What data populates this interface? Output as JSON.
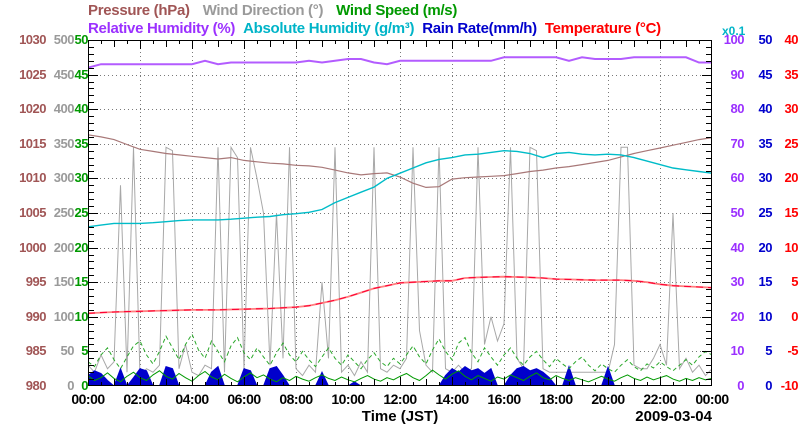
{
  "legend": {
    "row1": [
      {
        "label": "Pressure (hPa)",
        "color": "#a05555"
      },
      {
        "label": "Wind Direction (°)",
        "color": "#9a9a9a"
      },
      {
        "label": "Wind Speed (m/s)",
        "color": "#009900"
      }
    ],
    "row2": [
      {
        "label": "Relative Humidity (%)",
        "color": "#9b30ff"
      },
      {
        "label": "Absolute Humidity (g/m³)",
        "color": "#00b4c8"
      },
      {
        "label": "Rain Rate(mm/h)",
        "color": "#0000cc"
      },
      {
        "label": "Temperature (°C)",
        "color": "#ff0000"
      }
    ],
    "scale_note": {
      "label": "x0.1",
      "color": "#00b4c8"
    }
  },
  "y_axes_left": [
    {
      "id": "pressure",
      "unit": "hPa",
      "color": "#a05555",
      "ticks": [
        "1030",
        "1025",
        "1020",
        "1015",
        "1010",
        "1005",
        "1000",
        "995",
        "990",
        "985",
        "980"
      ]
    },
    {
      "id": "wind-direction",
      "unit": "deg",
      "color": "#9a9a9a",
      "ticks": [
        "500",
        "450",
        "400",
        "350",
        "300",
        "250",
        "200",
        "150",
        "100",
        "50",
        "0"
      ]
    },
    {
      "id": "wind-speed",
      "unit": "m/s",
      "color": "#009900",
      "ticks": [
        "50",
        "45",
        "40",
        "35",
        "30",
        "25",
        "20",
        "15",
        "10",
        "5",
        "0"
      ]
    }
  ],
  "y_axes_right": [
    {
      "id": "relative-humidity",
      "unit": "%",
      "color": "#9b30ff",
      "ticks": [
        "100",
        "90",
        "80",
        "70",
        "60",
        "50",
        "40",
        "30",
        "20",
        "10",
        "0"
      ]
    },
    {
      "id": "rain-rate",
      "unit": "mm/h",
      "color": "#0000cc",
      "ticks": [
        "50",
        "45",
        "40",
        "35",
        "30",
        "25",
        "20",
        "15",
        "10",
        "5",
        "0"
      ]
    },
    {
      "id": "temperature",
      "unit": "°C",
      "color": "#ff0000",
      "ticks": [
        "40",
        "35",
        "30",
        "25",
        "20",
        "15",
        "10",
        "5",
        "0",
        "-5",
        "-10"
      ]
    }
  ],
  "x_axis": {
    "labels": [
      "00:00",
      "02:00",
      "04:00",
      "06:00",
      "08:00",
      "10:00",
      "12:00",
      "14:00",
      "16:00",
      "18:00",
      "20:00",
      "22:00",
      "00:00"
    ],
    "title": "Time (JST)",
    "date": "2009-03-04"
  },
  "chart_data": {
    "type": "line",
    "xlabel": "Time (JST)",
    "date": "2009-03-04",
    "grid": true,
    "x_hours_smooth": [
      0,
      0.5,
      1,
      1.5,
      2,
      2.5,
      3,
      3.5,
      4,
      4.5,
      5,
      5.5,
      6,
      6.5,
      7,
      7.5,
      8,
      8.5,
      9,
      9.5,
      10,
      10.5,
      11,
      11.5,
      12,
      12.5,
      13,
      13.5,
      14,
      14.5,
      15,
      15.5,
      16,
      16.5,
      17,
      17.5,
      18,
      18.5,
      19,
      19.5,
      20,
      20.5,
      21,
      21.5,
      22,
      22.5,
      23,
      23.5,
      24
    ],
    "x_hours_fine": [
      0,
      0.25,
      0.5,
      0.75,
      1,
      1.25,
      1.5,
      1.75,
      2,
      2.25,
      2.5,
      2.75,
      3,
      3.25,
      3.5,
      3.75,
      4,
      4.25,
      4.5,
      4.75,
      5,
      5.25,
      5.5,
      5.75,
      6,
      6.25,
      6.5,
      6.75,
      7,
      7.25,
      7.5,
      7.75,
      8,
      8.25,
      8.5,
      8.75,
      9,
      9.25,
      9.5,
      9.75,
      10,
      10.25,
      10.5,
      10.75,
      11,
      11.25,
      11.5,
      11.75,
      12,
      12.25,
      12.5,
      12.75,
      13,
      13.25,
      13.5,
      13.75,
      14,
      14.25,
      14.5,
      14.75,
      15,
      15.25,
      15.5,
      15.75,
      16,
      16.25,
      16.5,
      16.75,
      17,
      17.25,
      17.5,
      17.75,
      18,
      18.25,
      18.5,
      18.75,
      19,
      19.25,
      19.5,
      19.75,
      20,
      20.25,
      20.5,
      20.75,
      21,
      21.25,
      21.5,
      21.75,
      22,
      22.25,
      22.5,
      22.75,
      23,
      23.25,
      23.5,
      23.75,
      24
    ],
    "series": [
      {
        "name": "wind_direction",
        "unit": "deg",
        "x": "fine",
        "range": [
          0,
          500
        ],
        "color": "#a8a8a8",
        "width": 1,
        "values": [
          30,
          20,
          45,
          25,
          35,
          290,
          20,
          345,
          15,
          25,
          20,
          30,
          345,
          340,
          25,
          60,
          20,
          15,
          30,
          25,
          345,
          20,
          345,
          330,
          25,
          345,
          300,
          250,
          30,
          250,
          40,
          345,
          25,
          15,
          30,
          20,
          150,
          40,
          345,
          20,
          30,
          15,
          35,
          20,
          345,
          25,
          20,
          30,
          25,
          40,
          345,
          80,
          30,
          20,
          345,
          25,
          20,
          30,
          20,
          25,
          345,
          60,
          100,
          65,
          90,
          345,
          40,
          25,
          345,
          340,
          25,
          20,
          20,
          20,
          20,
          20,
          20,
          20,
          20,
          20,
          20,
          60,
          345,
          345,
          30,
          25,
          25,
          40,
          60,
          30,
          250,
          25,
          40,
          20,
          30,
          15,
          25
        ]
      },
      {
        "name": "rain_rate",
        "unit": "mm/h",
        "x": "fine",
        "range": [
          0,
          50
        ],
        "color": "#0000cc",
        "fill": true,
        "values": [
          1.5,
          2.2,
          1.8,
          0.8,
          0,
          2.5,
          0,
          1.2,
          2.5,
          2.2,
          0,
          0,
          2.8,
          2.5,
          0,
          0,
          0,
          0,
          0,
          2.0,
          2.8,
          0,
          0,
          0,
          2.5,
          2.2,
          0,
          0,
          2.5,
          2.8,
          1.5,
          0,
          0,
          0,
          0,
          0,
          2.0,
          0,
          0,
          0,
          0,
          0.6,
          0,
          0,
          0,
          0,
          0,
          0,
          0,
          0,
          0,
          0,
          0,
          0,
          0,
          1.5,
          2.5,
          2.0,
          2.8,
          2.2,
          2.5,
          1.8,
          2.5,
          0,
          0,
          1.5,
          2.5,
          2.8,
          2.2,
          2.5,
          2.0,
          1.2,
          0,
          0,
          2.8,
          0,
          0,
          0,
          0,
          0,
          2.7,
          0,
          0,
          0,
          0,
          0,
          0,
          0,
          0,
          0,
          0,
          0,
          0,
          0,
          0,
          0,
          0
        ]
      },
      {
        "name": "wind_speed_max",
        "unit": "m/s",
        "x": "fine",
        "range": [
          0,
          50
        ],
        "color": "#2aa82a",
        "width": 1,
        "dash": "4 3",
        "values": [
          3.5,
          2.8,
          4.5,
          5.5,
          3.8,
          2.5,
          4.2,
          5.8,
          6.5,
          4.5,
          3.2,
          5.0,
          7.2,
          5.5,
          3.8,
          6.0,
          7.5,
          5.2,
          4.0,
          6.5,
          5.0,
          3.5,
          5.8,
          7.0,
          4.8,
          3.8,
          5.5,
          4.2,
          3.0,
          4.8,
          6.2,
          4.5,
          3.5,
          5.0,
          3.8,
          2.8,
          4.2,
          5.5,
          4.0,
          3.0,
          4.5,
          3.5,
          2.5,
          3.8,
          4.8,
          3.5,
          2.8,
          4.0,
          3.2,
          4.5,
          5.8,
          4.2,
          3.2,
          5.2,
          6.8,
          5.0,
          3.8,
          6.2,
          7.0,
          4.8,
          3.5,
          5.5,
          4.2,
          3.0,
          4.5,
          5.5,
          4.0,
          3.0,
          4.2,
          5.0,
          3.8,
          2.8,
          4.0,
          3.2,
          2.5,
          3.5,
          4.2,
          3.0,
          2.2,
          3.2,
          2.5,
          2.0,
          3.0,
          3.8,
          2.8,
          2.2,
          3.2,
          2.6,
          3.5,
          2.8,
          2.2,
          3.0,
          3.8,
          3.0,
          4.2,
          5.0,
          4.5
        ]
      },
      {
        "name": "wind_speed",
        "unit": "m/s",
        "x": "fine",
        "range": [
          0,
          50
        ],
        "color": "#009900",
        "width": 1,
        "values": [
          1.5,
          0.8,
          1.2,
          1.9,
          1.1,
          0.6,
          1.4,
          2.0,
          1.2,
          0.8,
          1.6,
          2.2,
          1.4,
          1.0,
          1.8,
          1.2,
          0.7,
          1.5,
          2.1,
          1.3,
          0.9,
          1.7,
          1.1,
          0.6,
          1.3,
          1.9,
          1.2,
          1.6,
          1.0,
          0.6,
          1.2,
          0.8,
          1.4,
          1.0,
          0.7,
          1.2,
          1.6,
          1.1,
          0.8,
          1.3,
          0.9,
          0.6,
          1.1,
          1.5,
          1.0,
          0.7,
          1.2,
          0.9,
          1.4,
          1.8,
          1.2,
          0.8,
          1.5,
          2.3,
          1.6,
          1.0,
          1.7,
          2.2,
          1.4,
          0.9,
          1.5,
          1.1,
          0.7,
          1.3,
          1.0,
          1.6,
          1.2,
          0.8,
          1.4,
          1.9,
          1.2,
          0.9,
          1.5,
          1.1,
          0.8,
          1.2,
          0.9,
          0.6,
          1.0,
          1.4,
          1.0,
          0.7,
          1.2,
          1.6,
          1.1,
          0.8,
          1.3,
          0.9,
          1.2,
          1.5,
          1.0,
          0.7,
          1.1,
          0.8,
          1.2,
          0.9,
          1.1
        ]
      },
      {
        "name": "pressure",
        "unit": "hPa",
        "x": "smooth",
        "range": [
          980,
          1030
        ],
        "color": "#a87878",
        "width": 1.2,
        "values": [
          1016.3,
          1016.0,
          1015.6,
          1014.9,
          1014.2,
          1013.9,
          1013.6,
          1013.4,
          1013.2,
          1013.0,
          1012.8,
          1013.0,
          1012.6,
          1012.4,
          1012.2,
          1012.1,
          1011.9,
          1011.8,
          1011.6,
          1011.2,
          1010.8,
          1010.5,
          1010.7,
          1010.8,
          1010.2,
          1009.3,
          1008.7,
          1008.8,
          1009.9,
          1010.1,
          1010.2,
          1010.3,
          1010.4,
          1010.7,
          1011.0,
          1011.2,
          1011.5,
          1011.7,
          1012.0,
          1012.3,
          1012.6,
          1013.1,
          1013.6,
          1014.0,
          1014.4,
          1014.8,
          1015.2,
          1015.6,
          1015.9
        ]
      },
      {
        "name": "absolute_humidity",
        "unit": "g/m3",
        "x": "smooth",
        "range": [
          0,
          100
        ],
        "color": "#00bcc8",
        "width": 1.4,
        "plot_scale": 10,
        "scale_note": "plotted on 0-100 axis x0.1",
        "values": [
          4.6,
          4.65,
          4.7,
          4.7,
          4.7,
          4.72,
          4.75,
          4.78,
          4.8,
          4.8,
          4.8,
          4.82,
          4.85,
          4.88,
          4.9,
          4.95,
          4.98,
          5.02,
          5.1,
          5.3,
          5.45,
          5.6,
          5.75,
          6.0,
          6.15,
          6.3,
          6.45,
          6.55,
          6.6,
          6.68,
          6.7,
          6.75,
          6.8,
          6.78,
          6.72,
          6.6,
          6.72,
          6.75,
          6.7,
          6.68,
          6.7,
          6.68,
          6.6,
          6.5,
          6.4,
          6.3,
          6.25,
          6.2,
          6.15
        ]
      },
      {
        "name": "temperature",
        "unit": "°C",
        "x": "smooth",
        "range": [
          -10,
          40
        ],
        "color": "#ff8080",
        "width": 1.8,
        "overlay": {
          "color": "#ff0033",
          "width": 1.1,
          "dash": "7 5"
        },
        "values": [
          0.5,
          0.6,
          0.7,
          0.75,
          0.8,
          0.85,
          0.9,
          0.95,
          1.0,
          1.0,
          1.0,
          1.05,
          1.1,
          1.15,
          1.2,
          1.3,
          1.4,
          1.6,
          2.0,
          2.4,
          2.9,
          3.5,
          4.1,
          4.5,
          4.9,
          5.0,
          5.1,
          5.2,
          5.2,
          5.6,
          5.7,
          5.75,
          5.8,
          5.75,
          5.7,
          5.6,
          5.45,
          5.4,
          5.35,
          5.3,
          5.3,
          5.3,
          5.2,
          5.0,
          4.7,
          4.5,
          4.4,
          4.3,
          4.2
        ]
      },
      {
        "name": "relative_humidity",
        "unit": "%",
        "x": "smooth",
        "range": [
          0,
          100
        ],
        "color": "#b35cff",
        "width": 2,
        "values": [
          92,
          93,
          93,
          93,
          93,
          93,
          93,
          93,
          93,
          94,
          93,
          93.5,
          93.5,
          93.5,
          93.5,
          93.5,
          93.5,
          94,
          93.5,
          94,
          94.5,
          94.5,
          93.5,
          93,
          94,
          94,
          94,
          94,
          94,
          94,
          94,
          94,
          95,
          95,
          95,
          95,
          95,
          94,
          95,
          94.5,
          94.5,
          94.5,
          95,
          95,
          95,
          95,
          95,
          93.5,
          93.5
        ]
      }
    ]
  }
}
